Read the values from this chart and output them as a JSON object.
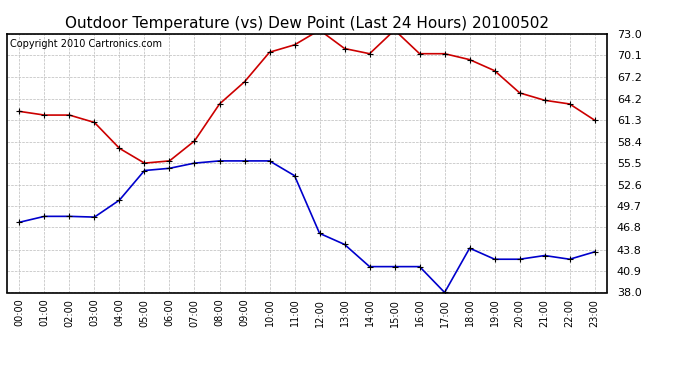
{
  "title": "Outdoor Temperature (vs) Dew Point (Last 24 Hours) 20100502",
  "copyright_text": "Copyright 2010 Cartronics.com",
  "hours": [
    "00:00",
    "01:00",
    "02:00",
    "03:00",
    "04:00",
    "05:00",
    "06:00",
    "07:00",
    "08:00",
    "09:00",
    "10:00",
    "11:00",
    "12:00",
    "13:00",
    "14:00",
    "15:00",
    "16:00",
    "17:00",
    "18:00",
    "19:00",
    "20:00",
    "21:00",
    "22:00",
    "23:00"
  ],
  "temp": [
    62.5,
    62.0,
    62.0,
    61.0,
    57.5,
    55.5,
    55.8,
    58.5,
    63.5,
    66.5,
    70.5,
    71.5,
    73.5,
    71.0,
    70.3,
    73.5,
    70.3,
    70.3,
    69.5,
    68.0,
    65.0,
    64.0,
    63.5,
    61.3
  ],
  "dewpoint": [
    47.5,
    48.3,
    48.3,
    48.2,
    50.5,
    54.5,
    54.8,
    55.5,
    55.8,
    55.8,
    55.8,
    53.8,
    46.0,
    44.5,
    41.5,
    41.5,
    41.5,
    38.0,
    44.0,
    42.5,
    42.5,
    43.0,
    42.5,
    43.5
  ],
  "temp_color": "#cc0000",
  "dewpoint_color": "#0000cc",
  "bg_color": "#ffffff",
  "plot_bg_color": "#ffffff",
  "grid_color": "#bbbbbb",
  "ylim": [
    38.0,
    73.0
  ],
  "yticks": [
    38.0,
    40.9,
    43.8,
    46.8,
    49.7,
    52.6,
    55.5,
    58.4,
    61.3,
    64.2,
    67.2,
    70.1,
    73.0
  ],
  "title_fontsize": 11,
  "copyright_fontsize": 7
}
